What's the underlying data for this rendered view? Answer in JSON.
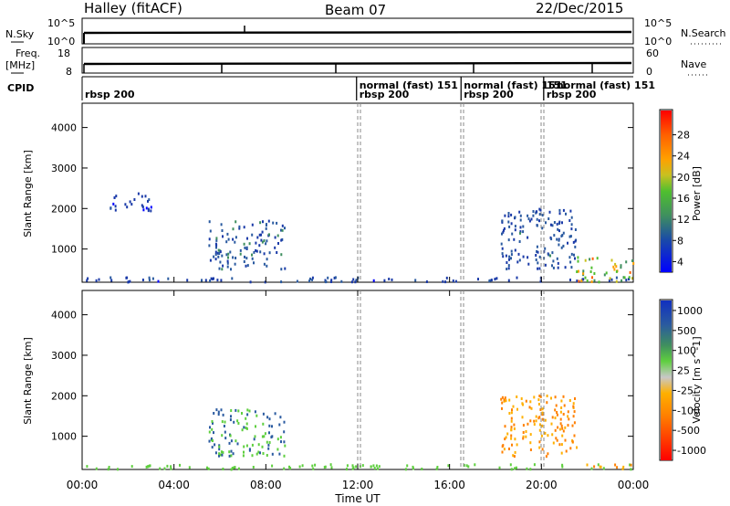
{
  "header": {
    "station": "Halley (fitACF)",
    "beam": "Beam 07",
    "date": "22/Dec/2015"
  },
  "noise_panel": {
    "left_label": "N.Sky",
    "left_ticks": [
      "10^5",
      "10^0"
    ],
    "right_ticks": [
      "10^5",
      "10^0"
    ],
    "right_label": "N.Search"
  },
  "freq_panel": {
    "left_label_1": "Freq.",
    "left_label_2": "[MHz]",
    "left_ticks": [
      "18",
      "8"
    ],
    "right_ticks": [
      "60",
      "0"
    ],
    "right_label": "Nave"
  },
  "cpid_panel": {
    "label": "CPID",
    "segments": [
      {
        "start_h": 0.0,
        "label": "rbsp 200",
        "level": "bottom"
      },
      {
        "start_h": 11.95,
        "label": "normal (fast) 151",
        "level": "top"
      },
      {
        "start_h": 11.95,
        "label": "rbsp 200",
        "level": "bottom"
      },
      {
        "start_h": 16.5,
        "label": "normal (fast) 151",
        "level": "top"
      },
      {
        "start_h": 16.5,
        "label": "rbsp 200",
        "level": "bottom"
      },
      {
        "start_h": 20.1,
        "label": "151",
        "level": "top"
      },
      {
        "start_h": 20.1,
        "label": "normal (fast) 151",
        "level": "top2"
      },
      {
        "start_h": 20.1,
        "label": "rbsp 200",
        "level": "bottom"
      }
    ]
  },
  "x_axis": {
    "label": "Time UT",
    "ticks": [
      "00:00",
      "04:00",
      "08:00",
      "12:00",
      "16:00",
      "20:00",
      "00:00"
    ],
    "range_hours": [
      0,
      24
    ]
  },
  "chart_data": [
    {
      "type": "heatmap",
      "title": "",
      "xlabel": "Time UT",
      "ylabel": "Slant Range [km]",
      "ylim": [
        180,
        4600
      ],
      "yticks": [
        1000,
        2000,
        3000,
        4000
      ],
      "colorbar": {
        "label": "Power [dB]",
        "ticks": [
          "4",
          "8",
          "12",
          "16",
          "20",
          "24",
          "28"
        ],
        "range": [
          0,
          30
        ]
      },
      "colors": {
        "low": "#0000ff",
        "mid": "#3f8f5f",
        "high": "#ff0000"
      },
      "regions": [
        {
          "t0": 0.0,
          "t1": 24.0,
          "r0": 180,
          "r1": 300,
          "level": 6
        },
        {
          "t0": 5.5,
          "t1": 8.8,
          "r0": 500,
          "r1": 1700,
          "level": 8
        },
        {
          "t0": 1.2,
          "t1": 3.0,
          "r0": 1900,
          "r1": 2400,
          "level": 5
        },
        {
          "t0": 18.2,
          "t1": 21.5,
          "r0": 500,
          "r1": 2000,
          "level": 7
        },
        {
          "t0": 21.5,
          "t1": 24.0,
          "r0": 180,
          "r1": 800,
          "level": 18
        }
      ]
    },
    {
      "type": "heatmap",
      "title": "",
      "xlabel": "Time UT",
      "ylabel": "Slant Range [km]",
      "ylim": [
        180,
        4600
      ],
      "yticks": [
        1000,
        2000,
        3000,
        4000
      ],
      "colorbar": {
        "label": "Velocity [m s^-1]",
        "ticks": [
          "1000",
          "500",
          "100",
          "25",
          "-25",
          "-100",
          "-500",
          "-1000"
        ],
        "range": [
          -1000,
          1000
        ]
      },
      "colors": {
        "positive": "#2040c0",
        "neutral": "#c0c0c0",
        "negative": "#ff8000"
      },
      "regions": [
        {
          "t0": 0.0,
          "t1": 24.0,
          "r0": 180,
          "r1": 300,
          "level": 50
        },
        {
          "t0": 5.5,
          "t1": 8.8,
          "r0": 500,
          "r1": 1700,
          "level": 100
        },
        {
          "t0": 18.2,
          "t1": 21.5,
          "r0": 500,
          "r1": 2000,
          "level": -100
        },
        {
          "t0": 21.5,
          "t1": 24.0,
          "r0": 180,
          "r1": 300,
          "level": -100
        }
      ]
    }
  ]
}
